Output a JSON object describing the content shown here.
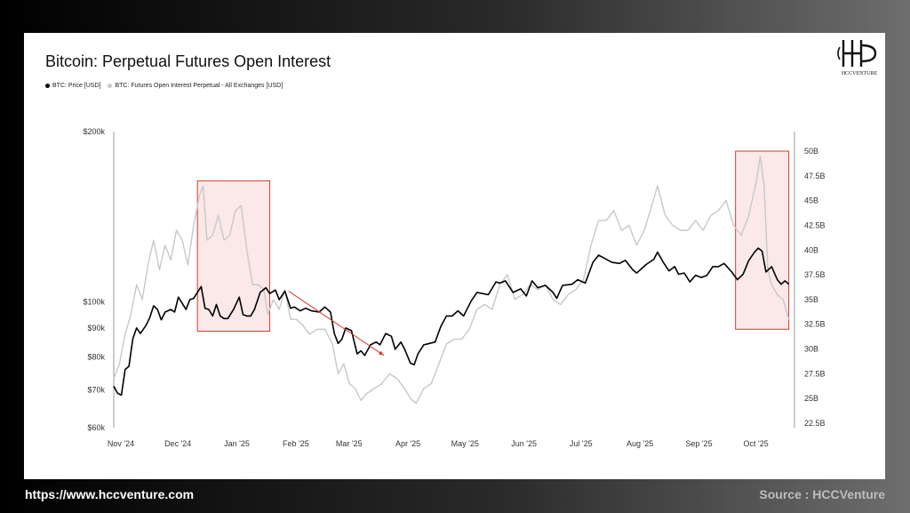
{
  "title": "Bitcoin: Perpetual Futures Open Interest",
  "logo_text": "HCCVENTURE",
  "footer": {
    "url": "https://www.hccventure.com",
    "source": "Source : HCCVenture"
  },
  "colors": {
    "price": "#000000",
    "oi": "#c8c8c8",
    "highlight_fill": "#fbe9e9",
    "highlight_stroke": "#d03a2f",
    "arrow": "#d03a2f"
  },
  "chart_data": {
    "type": "line",
    "title": "Bitcoin: Perpetual Futures Open Interest",
    "legend": [
      "BTC: Price [USD]",
      "BTC: Futures Open Interest Perpetual - All Exchanges [USD]"
    ],
    "legend_position": "top-left",
    "x_ticks": [
      "Nov '24",
      "Dec '24",
      "Jan '25",
      "Feb '25",
      "Mar '25",
      "Apr '25",
      "May '25",
      "Jun '25",
      "Jul '25",
      "Aug '25",
      "Sep '25",
      "Oct '25"
    ],
    "x_range": [
      "2024-11-01",
      "2025-10-25"
    ],
    "y_left": {
      "scale": "log",
      "range": [
        60000,
        200000
      ],
      "ticks": [
        60000,
        70000,
        80000,
        90000,
        100000,
        200000
      ],
      "tick_labels": [
        "$60k",
        "$70k",
        "$80k",
        "$90k",
        "$100k",
        "$200k"
      ]
    },
    "y_right": {
      "scale": "linear",
      "range": [
        22.5,
        50
      ],
      "ticks": [
        22.5,
        25,
        27.5,
        30,
        32.5,
        35,
        37.5,
        40,
        42.5,
        45,
        47.5,
        50
      ],
      "tick_labels": [
        "22.5B",
        "25B",
        "27.5B",
        "30B",
        "32.5B",
        "35B",
        "37.5B",
        "40B",
        "42.5B",
        "45B",
        "47.5B",
        "50B"
      ]
    },
    "series": [
      {
        "name": "BTC: Price [USD]",
        "axis": "left",
        "color": "#000000",
        "points": [
          [
            "2024-11-01",
            71000
          ],
          [
            "2024-11-03",
            69000
          ],
          [
            "2024-11-05",
            68500
          ],
          [
            "2024-11-07",
            76000
          ],
          [
            "2024-11-09",
            77000
          ],
          [
            "2024-11-11",
            86000
          ],
          [
            "2024-11-13",
            90000
          ],
          [
            "2024-11-15",
            88000
          ],
          [
            "2024-11-18",
            91000
          ],
          [
            "2024-11-20",
            94000
          ],
          [
            "2024-11-22",
            98500
          ],
          [
            "2024-11-24",
            97000
          ],
          [
            "2024-11-26",
            93000
          ],
          [
            "2024-11-28",
            96000
          ],
          [
            "2024-12-01",
            97000
          ],
          [
            "2024-12-03",
            96000
          ],
          [
            "2024-12-05",
            102000
          ],
          [
            "2024-12-07",
            99500
          ],
          [
            "2024-12-09",
            97000
          ],
          [
            "2024-12-11",
            101000
          ],
          [
            "2024-12-13",
            101500
          ],
          [
            "2024-12-15",
            104000
          ],
          [
            "2024-12-17",
            106500
          ],
          [
            "2024-12-19",
            97500
          ],
          [
            "2024-12-21",
            97000
          ],
          [
            "2024-12-23",
            94500
          ],
          [
            "2024-12-25",
            99000
          ],
          [
            "2024-12-27",
            94500
          ],
          [
            "2024-12-29",
            93500
          ],
          [
            "2024-12-31",
            93500
          ],
          [
            "2025-01-03",
            97000
          ],
          [
            "2025-01-06",
            102000
          ],
          [
            "2025-01-08",
            95000
          ],
          [
            "2025-01-10",
            94500
          ],
          [
            "2025-01-12",
            94500
          ],
          [
            "2025-01-14",
            97000
          ],
          [
            "2025-01-17",
            104000
          ],
          [
            "2025-01-20",
            106000
          ],
          [
            "2025-01-22",
            103500
          ],
          [
            "2025-01-25",
            105000
          ],
          [
            "2025-01-27",
            101000
          ],
          [
            "2025-01-30",
            104500
          ],
          [
            "2025-02-02",
            97500
          ],
          [
            "2025-02-04",
            98000
          ],
          [
            "2025-02-07",
            96500
          ],
          [
            "2025-02-10",
            97500
          ],
          [
            "2025-02-13",
            96500
          ],
          [
            "2025-02-17",
            96000
          ],
          [
            "2025-02-20",
            98000
          ],
          [
            "2025-02-23",
            96000
          ],
          [
            "2025-02-25",
            88000
          ],
          [
            "2025-02-27",
            84500
          ],
          [
            "2025-03-01",
            86000
          ],
          [
            "2025-03-03",
            90000
          ],
          [
            "2025-03-06",
            89000
          ],
          [
            "2025-03-09",
            81000
          ],
          [
            "2025-03-11",
            82000
          ],
          [
            "2025-03-13",
            80500
          ],
          [
            "2025-03-16",
            84000
          ],
          [
            "2025-03-19",
            85000
          ],
          [
            "2025-03-21",
            84000
          ],
          [
            "2025-03-24",
            88000
          ],
          [
            "2025-03-27",
            87000
          ],
          [
            "2025-03-29",
            82500
          ],
          [
            "2025-04-01",
            85000
          ],
          [
            "2025-04-03",
            82500
          ],
          [
            "2025-04-06",
            78000
          ],
          [
            "2025-04-08",
            77500
          ],
          [
            "2025-04-10",
            81000
          ],
          [
            "2025-04-13",
            84000
          ],
          [
            "2025-04-16",
            84500
          ],
          [
            "2025-04-19",
            85000
          ],
          [
            "2025-04-22",
            90500
          ],
          [
            "2025-04-25",
            94500
          ],
          [
            "2025-04-28",
            94500
          ],
          [
            "2025-05-01",
            96500
          ],
          [
            "2025-05-04",
            94500
          ],
          [
            "2025-05-08",
            100500
          ],
          [
            "2025-05-11",
            104000
          ],
          [
            "2025-05-14",
            103500
          ],
          [
            "2025-05-17",
            103000
          ],
          [
            "2025-05-21",
            108500
          ],
          [
            "2025-05-23",
            108000
          ],
          [
            "2025-05-26",
            109000
          ],
          [
            "2025-05-30",
            104000
          ],
          [
            "2025-06-03",
            105500
          ],
          [
            "2025-06-06",
            102500
          ],
          [
            "2025-06-09",
            109000
          ],
          [
            "2025-06-12",
            106000
          ],
          [
            "2025-06-16",
            107000
          ],
          [
            "2025-06-20",
            104000
          ],
          [
            "2025-06-22",
            101500
          ],
          [
            "2025-06-25",
            107000
          ],
          [
            "2025-06-30",
            107500
          ],
          [
            "2025-07-03",
            109500
          ],
          [
            "2025-07-07",
            108000
          ],
          [
            "2025-07-11",
            117500
          ],
          [
            "2025-07-14",
            121000
          ],
          [
            "2025-07-17",
            119500
          ],
          [
            "2025-07-21",
            117500
          ],
          [
            "2025-07-25",
            117000
          ],
          [
            "2025-07-28",
            118500
          ],
          [
            "2025-08-01",
            114000
          ],
          [
            "2025-08-03",
            112500
          ],
          [
            "2025-08-08",
            116500
          ],
          [
            "2025-08-12",
            119000
          ],
          [
            "2025-08-14",
            122500
          ],
          [
            "2025-08-17",
            117500
          ],
          [
            "2025-08-20",
            113500
          ],
          [
            "2025-08-23",
            115500
          ],
          [
            "2025-08-25",
            112000
          ],
          [
            "2025-08-28",
            112500
          ],
          [
            "2025-08-31",
            108500
          ],
          [
            "2025-09-03",
            111500
          ],
          [
            "2025-09-06",
            110500
          ],
          [
            "2025-09-09",
            111500
          ],
          [
            "2025-09-12",
            115500
          ],
          [
            "2025-09-15",
            115500
          ],
          [
            "2025-09-18",
            117000
          ],
          [
            "2025-09-22",
            113000
          ],
          [
            "2025-09-25",
            109500
          ],
          [
            "2025-09-28",
            112000
          ],
          [
            "2025-10-01",
            118500
          ],
          [
            "2025-10-04",
            122500
          ],
          [
            "2025-10-06",
            124500
          ],
          [
            "2025-10-08",
            123000
          ],
          [
            "2025-10-10",
            113000
          ],
          [
            "2025-10-13",
            115500
          ],
          [
            "2025-10-16",
            109500
          ],
          [
            "2025-10-18",
            107500
          ],
          [
            "2025-10-20",
            109000
          ],
          [
            "2025-10-22",
            107500
          ]
        ]
      },
      {
        "name": "BTC: Futures Open Interest Perpetual - All Exchanges [USD]",
        "axis": "right",
        "color": "#c8c8c8",
        "points": [
          [
            "2024-11-01",
            27.0
          ],
          [
            "2024-11-04",
            28.5
          ],
          [
            "2024-11-07",
            31.5
          ],
          [
            "2024-11-10",
            33.5
          ],
          [
            "2024-11-13",
            36.5
          ],
          [
            "2024-11-16",
            35.0
          ],
          [
            "2024-11-19",
            38.5
          ],
          [
            "2024-11-22",
            41.0
          ],
          [
            "2024-11-25",
            38.0
          ],
          [
            "2024-11-28",
            40.5
          ],
          [
            "2024-12-01",
            39.0
          ],
          [
            "2024-12-04",
            42.0
          ],
          [
            "2024-12-07",
            41.0
          ],
          [
            "2024-12-10",
            38.5
          ],
          [
            "2024-12-13",
            42.5
          ],
          [
            "2024-12-16",
            45.5
          ],
          [
            "2024-12-18",
            46.5
          ],
          [
            "2024-12-20",
            41.0
          ],
          [
            "2024-12-23",
            41.5
          ],
          [
            "2024-12-26",
            43.5
          ],
          [
            "2024-12-29",
            41.0
          ],
          [
            "2025-01-01",
            41.5
          ],
          [
            "2025-01-04",
            44.0
          ],
          [
            "2025-01-07",
            44.5
          ],
          [
            "2025-01-10",
            40.0
          ],
          [
            "2025-01-13",
            36.5
          ],
          [
            "2025-01-16",
            36.5
          ],
          [
            "2025-01-19",
            36.0
          ],
          [
            "2025-01-21",
            33.5
          ],
          [
            "2025-01-24",
            35.0
          ],
          [
            "2025-01-27",
            34.0
          ],
          [
            "2025-01-30",
            36.0
          ],
          [
            "2025-02-02",
            33.0
          ],
          [
            "2025-02-05",
            33.0
          ],
          [
            "2025-02-08",
            32.5
          ],
          [
            "2025-02-12",
            31.5
          ],
          [
            "2025-02-16",
            32.0
          ],
          [
            "2025-02-20",
            32.0
          ],
          [
            "2025-02-24",
            30.5
          ],
          [
            "2025-02-27",
            27.5
          ],
          [
            "2025-03-02",
            28.5
          ],
          [
            "2025-03-05",
            26.5
          ],
          [
            "2025-03-08",
            26.0
          ],
          [
            "2025-03-11",
            24.8
          ],
          [
            "2025-03-14",
            25.5
          ],
          [
            "2025-03-18",
            26.0
          ],
          [
            "2025-03-22",
            26.5
          ],
          [
            "2025-03-26",
            27.5
          ],
          [
            "2025-03-30",
            27.0
          ],
          [
            "2025-04-03",
            26.0
          ],
          [
            "2025-04-06",
            25.0
          ],
          [
            "2025-04-09",
            24.5
          ],
          [
            "2025-04-13",
            26.0
          ],
          [
            "2025-04-17",
            26.5
          ],
          [
            "2025-04-21",
            28.5
          ],
          [
            "2025-04-25",
            30.5
          ],
          [
            "2025-04-29",
            31.0
          ],
          [
            "2025-05-03",
            31.0
          ],
          [
            "2025-05-07",
            32.0
          ],
          [
            "2025-05-11",
            34.0
          ],
          [
            "2025-05-15",
            34.5
          ],
          [
            "2025-05-19",
            34.0
          ],
          [
            "2025-05-23",
            36.5
          ],
          [
            "2025-05-27",
            37.5
          ],
          [
            "2025-05-31",
            35.0
          ],
          [
            "2025-06-04",
            35.5
          ],
          [
            "2025-06-08",
            36.5
          ],
          [
            "2025-06-12",
            36.0
          ],
          [
            "2025-06-16",
            36.5
          ],
          [
            "2025-06-20",
            35.0
          ],
          [
            "2025-06-24",
            34.5
          ],
          [
            "2025-06-28",
            35.5
          ],
          [
            "2025-07-02",
            36.0
          ],
          [
            "2025-07-06",
            37.0
          ],
          [
            "2025-07-10",
            40.5
          ],
          [
            "2025-07-14",
            43.0
          ],
          [
            "2025-07-18",
            43.0
          ],
          [
            "2025-07-22",
            44.0
          ],
          [
            "2025-07-26",
            42.0
          ],
          [
            "2025-07-30",
            42.5
          ],
          [
            "2025-08-03",
            40.5
          ],
          [
            "2025-08-07",
            42.0
          ],
          [
            "2025-08-11",
            44.5
          ],
          [
            "2025-08-14",
            46.5
          ],
          [
            "2025-08-18",
            43.5
          ],
          [
            "2025-08-22",
            42.5
          ],
          [
            "2025-08-26",
            42.0
          ],
          [
            "2025-08-30",
            42.0
          ],
          [
            "2025-09-03",
            43.0
          ],
          [
            "2025-09-07",
            42.0
          ],
          [
            "2025-09-11",
            43.5
          ],
          [
            "2025-09-15",
            44.0
          ],
          [
            "2025-09-19",
            45.0
          ],
          [
            "2025-09-23",
            42.5
          ],
          [
            "2025-09-27",
            41.5
          ],
          [
            "2025-10-01",
            43.5
          ],
          [
            "2025-10-05",
            47.0
          ],
          [
            "2025-10-07",
            49.5
          ],
          [
            "2025-10-09",
            46.5
          ],
          [
            "2025-10-11",
            38.0
          ],
          [
            "2025-10-13",
            36.5
          ],
          [
            "2025-10-16",
            35.5
          ],
          [
            "2025-10-19",
            35.0
          ],
          [
            "2025-10-22",
            33.0
          ]
        ]
      }
    ],
    "annotations": [
      {
        "type": "box",
        "x": [
          "2024-12-15",
          "2025-01-22"
        ],
        "y_right": [
          31.8,
          47.0
        ]
      },
      {
        "type": "box",
        "x": [
          "2025-09-24",
          "2025-10-22"
        ],
        "y_right": [
          32.0,
          50.0
        ]
      },
      {
        "type": "arrow",
        "from": [
          "2025-02-01",
          104500
        ],
        "to": [
          "2025-03-23",
          80500
        ]
      }
    ]
  }
}
